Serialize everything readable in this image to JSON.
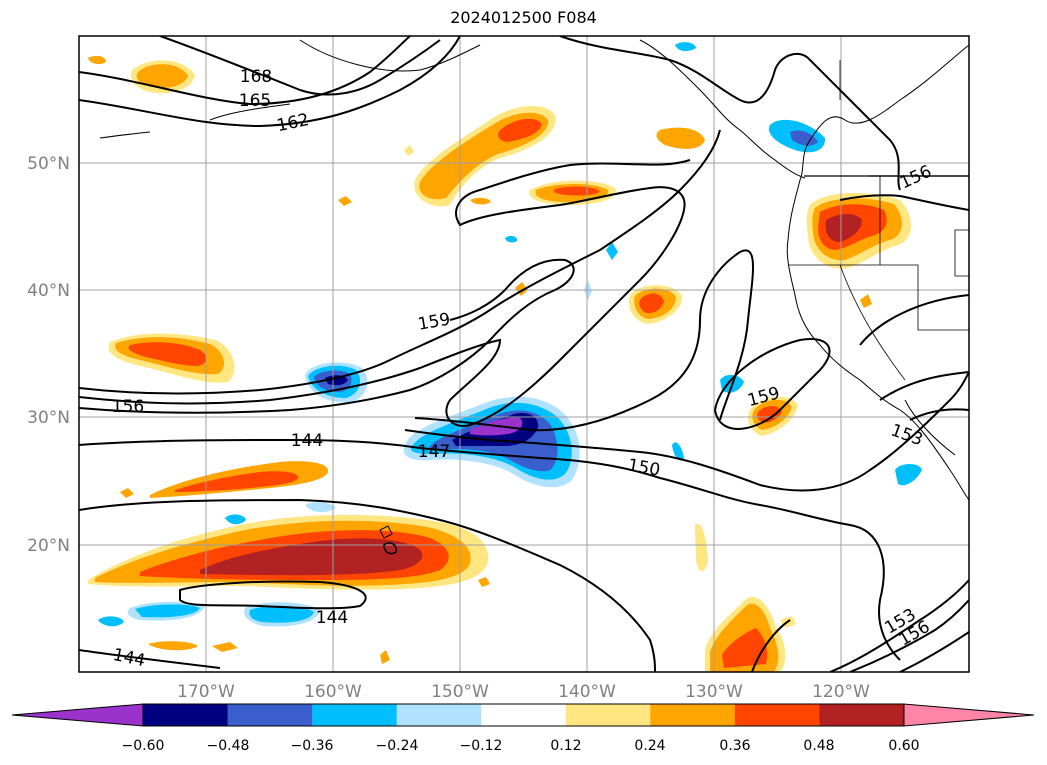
{
  "title": "2024012500 F084",
  "map": {
    "lat_labels": [
      "50°N",
      "40°N",
      "30°N",
      "20°N"
    ],
    "lon_labels": [
      "170°W",
      "160°W",
      "150°W",
      "140°W",
      "130°W",
      "120°W"
    ],
    "contour_labels": [
      "168",
      "165",
      "162",
      "159",
      "156",
      "144",
      "147",
      "150",
      "159",
      "156",
      "153",
      "153",
      "156",
      "144",
      "144"
    ],
    "contour_color": "#000000",
    "grid_color": "#a0a0a0"
  },
  "colorbar": {
    "tick_labels": [
      "−0.60",
      "−0.48",
      "−0.36",
      "−0.24",
      "−0.12",
      "0.12",
      "0.24",
      "0.36",
      "0.48",
      "0.60"
    ],
    "colors": [
      "#9933cc",
      "#000080",
      "#3a5fcd",
      "#00bfff",
      "#b0e2ff",
      "#ffffff",
      "#ffe680",
      "#ffa500",
      "#ff4500",
      "#b22222",
      "#ff85a8"
    ]
  }
}
